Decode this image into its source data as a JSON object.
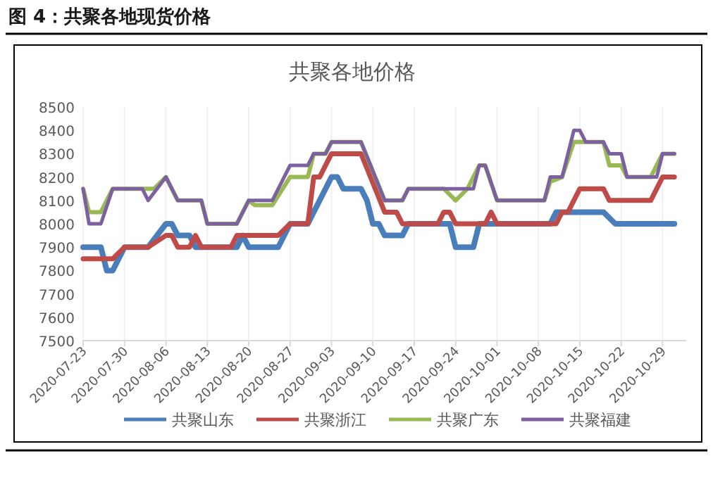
{
  "chart_data": {
    "type": "line",
    "title": "共聚各地价格",
    "subtitle": "图 4：共聚各地现货价格",
    "xlim": [
      "2020-07-23",
      "2020-11-02"
    ],
    "xticks": [
      "2020-07-23",
      "2020-07-30",
      "2020-08-06",
      "2020-08-13",
      "2020-08-20",
      "2020-08-27",
      "2020-09-03",
      "2020-09-10",
      "2020-09-17",
      "2020-09-24",
      "2020-10-01",
      "2020-10-08",
      "2020-10-15",
      "2020-10-22",
      "2020-10-29"
    ],
    "ylim": [
      7500,
      8500
    ],
    "yticks": [
      7500,
      7600,
      7700,
      7800,
      7900,
      8000,
      8100,
      8200,
      8300,
      8400,
      8500
    ],
    "grid": "x",
    "legend": "bottom",
    "marker": "none",
    "line_style": "solid",
    "series": [
      {
        "name": "共聚山东",
        "color": "#4a7ebb",
        "x": [
          "2020-07-23",
          "2020-07-26",
          "2020-07-27",
          "2020-07-28",
          "2020-07-30",
          "2020-08-03",
          "2020-08-06",
          "2020-08-07",
          "2020-08-08",
          "2020-08-10",
          "2020-08-11",
          "2020-08-18",
          "2020-08-19",
          "2020-08-20",
          "2020-08-25",
          "2020-08-27",
          "2020-08-30",
          "2020-09-03",
          "2020-09-04",
          "2020-09-05",
          "2020-09-08",
          "2020-09-09",
          "2020-09-10",
          "2020-09-11",
          "2020-09-12",
          "2020-09-15",
          "2020-09-16",
          "2020-09-23",
          "2020-09-24",
          "2020-09-27",
          "2020-09-28",
          "2020-10-10",
          "2020-10-11",
          "2020-10-19",
          "2020-10-21",
          "2020-10-31"
        ],
        "values": [
          7900,
          7900,
          7800,
          7800,
          7900,
          7900,
          8000,
          8000,
          7950,
          7950,
          7900,
          7900,
          7950,
          7900,
          7900,
          8000,
          8000,
          8200,
          8200,
          8150,
          8150,
          8100,
          8000,
          8000,
          7950,
          7950,
          8000,
          8000,
          7900,
          7900,
          8000,
          8000,
          8050,
          8050,
          8000,
          8000
        ]
      },
      {
        "name": "共聚浙江",
        "color": "#be4b48",
        "x": [
          "2020-07-23",
          "2020-07-28",
          "2020-07-30",
          "2020-08-03",
          "2020-08-06",
          "2020-08-07",
          "2020-08-08",
          "2020-08-10",
          "2020-08-11",
          "2020-08-12",
          "2020-08-17",
          "2020-08-18",
          "2020-08-25",
          "2020-08-27",
          "2020-08-30",
          "2020-08-31",
          "2020-09-01",
          "2020-09-03",
          "2020-09-08",
          "2020-09-12",
          "2020-09-14",
          "2020-09-15",
          "2020-09-21",
          "2020-09-22",
          "2020-09-23",
          "2020-09-24",
          "2020-09-29",
          "2020-09-30",
          "2020-10-01",
          "2020-10-11",
          "2020-10-12",
          "2020-10-13",
          "2020-10-15",
          "2020-10-19",
          "2020-10-20",
          "2020-10-27",
          "2020-10-29",
          "2020-10-31"
        ],
        "values": [
          7850,
          7850,
          7900,
          7900,
          7950,
          7950,
          7900,
          7900,
          7950,
          7900,
          7900,
          7950,
          7950,
          8000,
          8000,
          8200,
          8200,
          8300,
          8300,
          8050,
          8050,
          8000,
          8000,
          8050,
          8050,
          8000,
          8000,
          8050,
          8000,
          8000,
          8050,
          8050,
          8150,
          8150,
          8100,
          8100,
          8200,
          8200
        ]
      },
      {
        "name": "共聚广东",
        "color": "#98b954",
        "x": [
          "2020-07-23",
          "2020-07-24",
          "2020-07-26",
          "2020-07-28",
          "2020-08-04",
          "2020-08-06",
          "2020-08-08",
          "2020-08-12",
          "2020-08-13",
          "2020-08-18",
          "2020-08-20",
          "2020-08-21",
          "2020-08-24",
          "2020-08-27",
          "2020-08-30",
          "2020-08-31",
          "2020-09-02",
          "2020-09-03",
          "2020-09-08",
          "2020-09-12",
          "2020-09-15",
          "2020-09-16",
          "2020-09-22",
          "2020-09-24",
          "2020-09-26",
          "2020-09-28",
          "2020-09-29",
          "2020-10-01",
          "2020-10-09",
          "2020-10-10",
          "2020-10-12",
          "2020-10-14",
          "2020-10-19",
          "2020-10-20",
          "2020-10-22",
          "2020-10-23",
          "2020-10-27",
          "2020-10-29",
          "2020-10-31"
        ],
        "values": [
          8150,
          8050,
          8050,
          8150,
          8150,
          8200,
          8100,
          8100,
          8000,
          8000,
          8100,
          8080,
          8080,
          8200,
          8200,
          8300,
          8300,
          8350,
          8350,
          8100,
          8100,
          8150,
          8150,
          8100,
          8150,
          8250,
          8250,
          8100,
          8100,
          8180,
          8200,
          8350,
          8350,
          8250,
          8250,
          8200,
          8200,
          8300,
          8300
        ]
      },
      {
        "name": "共聚福建",
        "color": "#7d60a0",
        "x": [
          "2020-07-23",
          "2020-07-24",
          "2020-07-26",
          "2020-07-28",
          "2020-08-02",
          "2020-08-03",
          "2020-08-06",
          "2020-08-08",
          "2020-08-12",
          "2020-08-13",
          "2020-08-18",
          "2020-08-20",
          "2020-08-24",
          "2020-08-27",
          "2020-08-30",
          "2020-08-31",
          "2020-09-02",
          "2020-09-03",
          "2020-09-08",
          "2020-09-12",
          "2020-09-15",
          "2020-09-16",
          "2020-09-27",
          "2020-09-28",
          "2020-09-29",
          "2020-10-01",
          "2020-10-09",
          "2020-10-10",
          "2020-10-12",
          "2020-10-14",
          "2020-10-15",
          "2020-10-16",
          "2020-10-19",
          "2020-10-20",
          "2020-10-22",
          "2020-10-23",
          "2020-10-28",
          "2020-10-29",
          "2020-10-31"
        ],
        "values": [
          8150,
          8000,
          8000,
          8150,
          8150,
          8100,
          8200,
          8100,
          8100,
          8000,
          8000,
          8100,
          8100,
          8250,
          8250,
          8300,
          8300,
          8350,
          8350,
          8100,
          8100,
          8150,
          8150,
          8250,
          8250,
          8100,
          8100,
          8200,
          8200,
          8400,
          8400,
          8350,
          8350,
          8300,
          8300,
          8200,
          8200,
          8300,
          8300
        ]
      }
    ]
  }
}
